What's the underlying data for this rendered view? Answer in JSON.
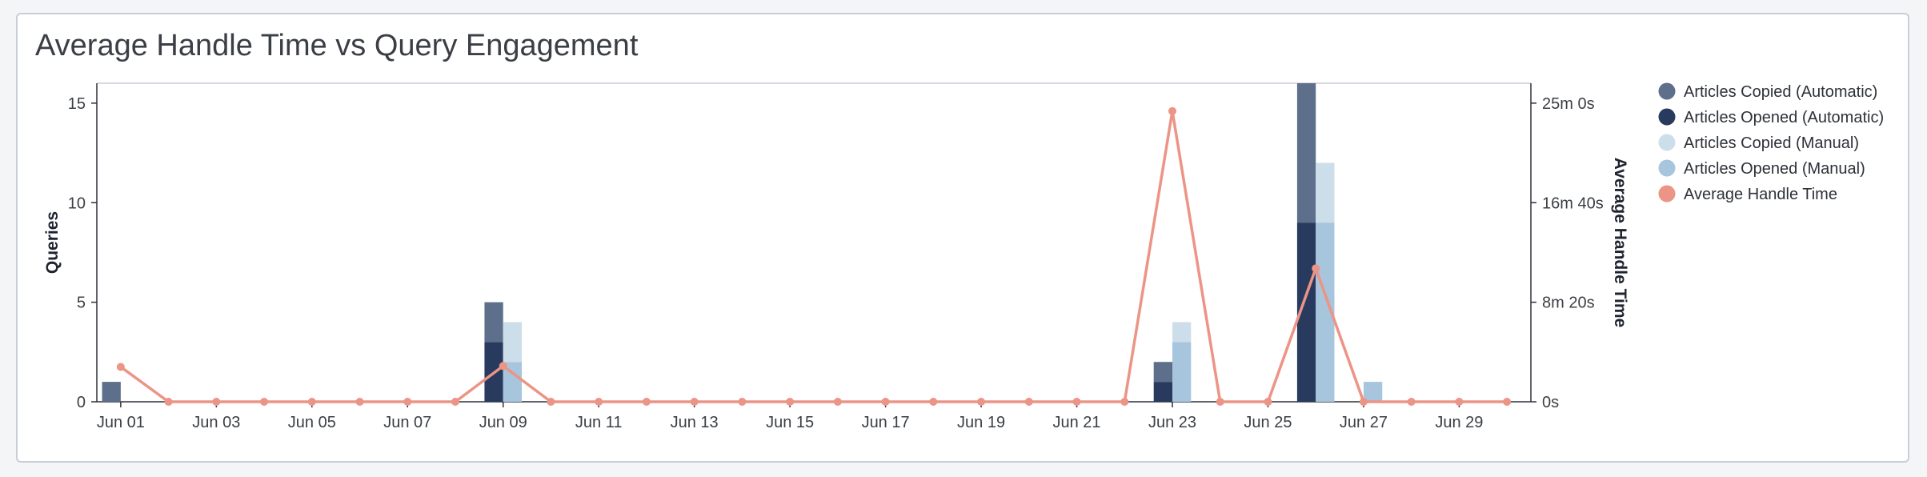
{
  "title": "Average Handle Time vs Query Engagement",
  "chart_data": {
    "type": "bar",
    "title": "Average Handle Time vs Query Engagement",
    "x_dates": [
      "Jun 01",
      "Jun 02",
      "Jun 03",
      "Jun 04",
      "Jun 05",
      "Jun 06",
      "Jun 07",
      "Jun 08",
      "Jun 09",
      "Jun 10",
      "Jun 11",
      "Jun 12",
      "Jun 13",
      "Jun 14",
      "Jun 15",
      "Jun 16",
      "Jun 17",
      "Jun 18",
      "Jun 19",
      "Jun 20",
      "Jun 21",
      "Jun 22",
      "Jun 23",
      "Jun 24",
      "Jun 25",
      "Jun 26",
      "Jun 27",
      "Jun 28",
      "Jun 29",
      "Jun 30"
    ],
    "x_tick_labels": [
      "Jun 01",
      "Jun 03",
      "Jun 05",
      "Jun 07",
      "Jun 09",
      "Jun 11",
      "Jun 13",
      "Jun 15",
      "Jun 17",
      "Jun 19",
      "Jun 21",
      "Jun 23",
      "Jun 25",
      "Jun 27",
      "Jun 29"
    ],
    "ylabel_left": "Queries",
    "ylim_left": [
      0,
      16
    ],
    "yticks_left": [
      0,
      5,
      10,
      15
    ],
    "ylabel_right": "Average Handle Time",
    "ylim_right_seconds": [
      0,
      1600
    ],
    "yticks_right": [
      {
        "seconds": 0,
        "label": "0s"
      },
      {
        "seconds": 500,
        "label": "8m 20s"
      },
      {
        "seconds": 1000,
        "label": "16m 40s"
      },
      {
        "seconds": 1500,
        "label": "25m 0s"
      }
    ],
    "legend_position": "top-right",
    "series": [
      {
        "name": "Articles Opened (Automatic)",
        "kind": "bar",
        "stack": "automatic",
        "color": "#283a5e",
        "values": [
          0,
          0,
          0,
          0,
          0,
          0,
          0,
          0,
          3,
          0,
          0,
          0,
          0,
          0,
          0,
          0,
          0,
          0,
          0,
          0,
          0,
          0,
          1,
          0,
          0,
          9,
          0,
          0,
          0,
          0
        ]
      },
      {
        "name": "Articles Copied (Automatic)",
        "kind": "bar",
        "stack": "automatic",
        "color": "#5d6f8a",
        "values": [
          1,
          0,
          0,
          0,
          0,
          0,
          0,
          0,
          2,
          0,
          0,
          0,
          0,
          0,
          0,
          0,
          0,
          0,
          0,
          0,
          0,
          0,
          1,
          0,
          0,
          7,
          0,
          0,
          0,
          0
        ]
      },
      {
        "name": "Articles Opened (Manual)",
        "kind": "bar",
        "stack": "manual",
        "color": "#a7c5dd",
        "values": [
          0,
          0,
          0,
          0,
          0,
          0,
          0,
          0,
          2,
          0,
          0,
          0,
          0,
          0,
          0,
          0,
          0,
          0,
          0,
          0,
          0,
          0,
          3,
          0,
          0,
          9,
          1,
          0,
          0,
          0
        ]
      },
      {
        "name": "Articles Copied (Manual)",
        "kind": "bar",
        "stack": "manual",
        "color": "#cddeeb",
        "values": [
          0,
          0,
          0,
          0,
          0,
          0,
          0,
          0,
          2,
          0,
          0,
          0,
          0,
          0,
          0,
          0,
          0,
          0,
          0,
          0,
          0,
          0,
          1,
          0,
          0,
          3,
          0,
          0,
          0,
          0
        ]
      },
      {
        "name": "Average Handle Time",
        "kind": "line",
        "color": "#ec9485",
        "values_seconds": [
          175,
          0,
          0,
          0,
          0,
          0,
          0,
          0,
          180,
          0,
          0,
          0,
          0,
          0,
          0,
          0,
          0,
          0,
          0,
          0,
          0,
          0,
          1460,
          0,
          0,
          670,
          0,
          0,
          0,
          0
        ]
      }
    ],
    "legend": [
      {
        "name": "Articles Copied (Automatic)",
        "color": "#5d6f8a"
      },
      {
        "name": "Articles Opened (Automatic)",
        "color": "#283a5e"
      },
      {
        "name": "Articles Copied (Manual)",
        "color": "#cddeeb"
      },
      {
        "name": "Articles Opened (Manual)",
        "color": "#a7c5dd"
      },
      {
        "name": "Average Handle Time",
        "color": "#ec9485"
      }
    ]
  }
}
